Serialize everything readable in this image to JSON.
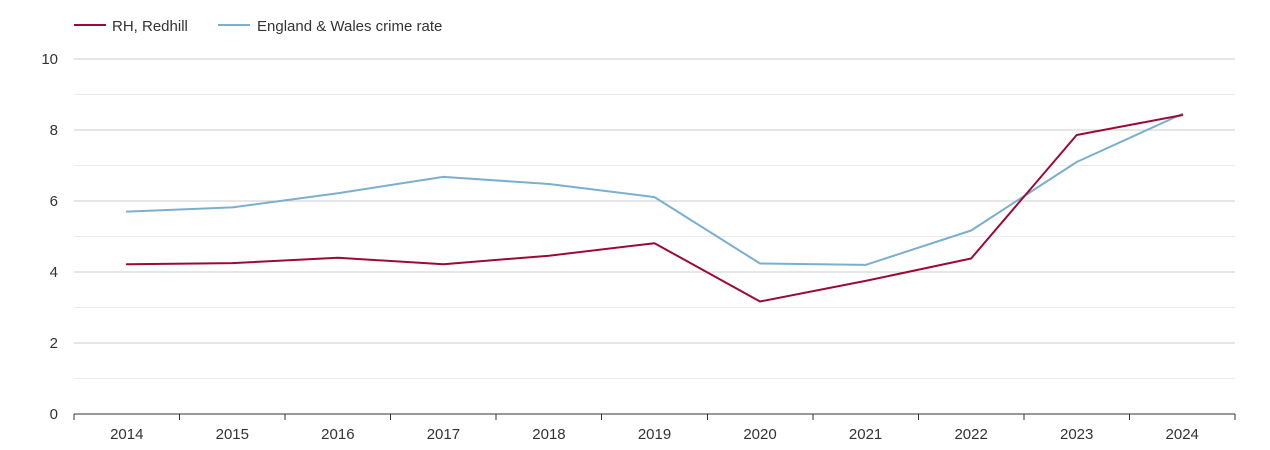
{
  "chart_data": {
    "type": "line",
    "title": "",
    "xlabel": "",
    "ylabel": "",
    "categories": [
      "2014",
      "2015",
      "2016",
      "2017",
      "2018",
      "2019",
      "2020",
      "2021",
      "2022",
      "2023",
      "2024"
    ],
    "ylim": [
      0,
      10
    ],
    "yticks": [
      "0",
      "2",
      "4",
      "6",
      "8",
      "10"
    ],
    "grid": true,
    "legend_position": "top-left",
    "series": [
      {
        "name": "RH, Redhill",
        "color": "#9b0a35",
        "values": [
          4.22,
          4.25,
          4.4,
          4.22,
          4.46,
          4.81,
          3.17,
          3.75,
          4.38,
          7.86,
          8.42
        ]
      },
      {
        "name": "England & Wales crime rate",
        "color": "#7aafd0",
        "values": [
          5.7,
          5.82,
          6.22,
          6.68,
          6.48,
          6.11,
          4.24,
          4.2,
          5.17,
          7.1,
          8.45
        ]
      }
    ]
  }
}
